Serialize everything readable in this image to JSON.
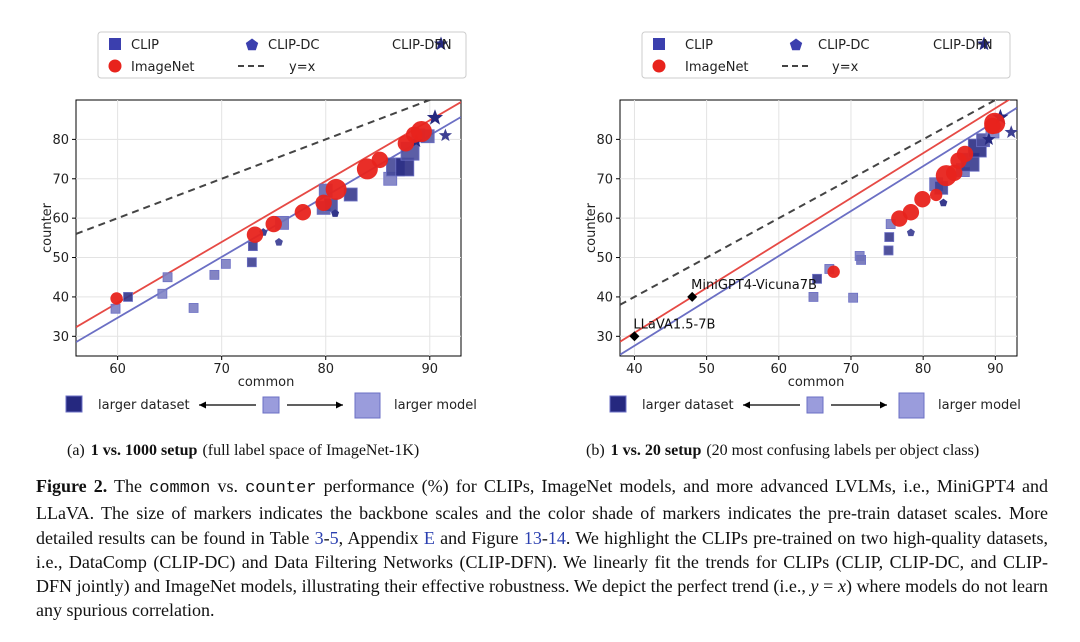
{
  "legend": {
    "clip": "CLIP",
    "clip_dc": "CLIP-DC",
    "clip_dfn": "CLIP-DFN",
    "imagenet": "ImageNet",
    "yx": "y=x"
  },
  "scale_legend": {
    "dataset": "larger dataset",
    "model": "larger model"
  },
  "colors": {
    "clip_fill": "#3b3fae",
    "clip_dark": "#25287f",
    "imagenet": "#e8231c",
    "fit_clip": "#6b6fc4",
    "fit_imagenet": "#e64a45",
    "yx": "#444444",
    "lvlm": "#000000"
  },
  "panels": [
    {
      "label": "(a)",
      "bold": "1 vs. 1000 setup",
      "rest": "(full label space of ImageNet-1K)"
    },
    {
      "label": "(b)",
      "bold": "1 vs. 20 setup",
      "rest": "(20 most confusing labels per object class)"
    }
  ],
  "chart_data": [
    {
      "type": "scatter",
      "title": "1 vs. 1000 setup",
      "xlabel": "common",
      "ylabel": "counter",
      "xlim": [
        56,
        93
      ],
      "ylim": [
        25,
        90
      ],
      "xticks": [
        60,
        70,
        80,
        90
      ],
      "yticks": [
        30,
        40,
        50,
        60,
        70,
        80
      ],
      "grid": true,
      "fit_lines": {
        "clip": {
          "slope": 1.545,
          "intercept": -58.0
        },
        "imagenet": {
          "slope": 1.545,
          "intercept": -54.2
        },
        "yx": {
          "slope": 1.0,
          "intercept": 0.0
        }
      },
      "series": [
        {
          "name": "CLIP",
          "marker": "square",
          "points": [
            [
              59.8,
              37,
              1,
              0.3
            ],
            [
              61.0,
              40,
              1,
              0.9
            ],
            [
              64.3,
              40.8,
              1,
              0.25
            ],
            [
              64.8,
              45,
              1,
              0.3
            ],
            [
              67.3,
              37.2,
              1,
              0.3
            ],
            [
              69.3,
              45.6,
              1,
              0.35
            ],
            [
              70.4,
              48.4,
              1,
              0.3
            ],
            [
              72.9,
              48.8,
              1,
              0.8
            ],
            [
              73.0,
              52.9,
              1,
              0.85
            ],
            [
              75.8,
              58.8,
              2,
              0.4
            ],
            [
              79.8,
              62.6,
              2,
              0.6
            ],
            [
              80.0,
              67.0,
              2,
              0.5
            ],
            [
              80.5,
              63.3,
              2,
              0.75
            ],
            [
              82.4,
              66.0,
              2,
              0.85
            ],
            [
              86.2,
              70.0,
              2,
              0.3
            ],
            [
              86.7,
              73.0,
              3,
              0.75
            ],
            [
              87.6,
              73.0,
              3,
              0.95
            ],
            [
              88.1,
              77.0,
              3,
              0.7
            ],
            [
              88.9,
              81.0,
              2,
              0.5
            ],
            [
              89.8,
              80.8,
              2,
              0.6
            ]
          ]
        },
        {
          "name": "CLIP-DC",
          "marker": "pentagon",
          "points": [
            [
              74.0,
              56.4,
              1,
              0.8
            ],
            [
              75.5,
              53.9,
              1,
              0.7
            ],
            [
              80.9,
              61.2,
              1,
              0.9
            ]
          ]
        },
        {
          "name": "CLIP-DFN",
          "marker": "star",
          "points": [
            [
              88.7,
              79.5,
              1,
              1.0
            ],
            [
              90.5,
              85.5,
              2,
              1.0
            ],
            [
              91.5,
              81.0,
              1,
              0.8
            ]
          ]
        },
        {
          "name": "ImageNet",
          "marker": "circle",
          "points": [
            [
              59.9,
              39.6,
              1
            ],
            [
              73.2,
              55.8,
              2
            ],
            [
              75.0,
              58.5,
              2
            ],
            [
              77.8,
              61.5,
              2
            ],
            [
              79.8,
              63.9,
              2
            ],
            [
              81.0,
              67.3,
              3
            ],
            [
              84.0,
              72.5,
              3
            ],
            [
              85.2,
              74.8,
              2
            ],
            [
              87.7,
              79.0,
              2
            ],
            [
              88.5,
              81.2,
              2
            ],
            [
              89.2,
              82.0,
              3
            ]
          ]
        },
        {
          "name": "LVLM",
          "marker": "diamond",
          "points": []
        }
      ],
      "annotations": []
    },
    {
      "type": "scatter",
      "title": "1 vs. 20 setup",
      "xlabel": "common",
      "ylabel": "counter",
      "xlim": [
        38,
        93
      ],
      "ylim": [
        25,
        90
      ],
      "xticks": [
        40,
        50,
        60,
        70,
        80,
        90
      ],
      "yticks": [
        30,
        40,
        50,
        60,
        70,
        80
      ],
      "grid": true,
      "fit_lines": {
        "clip": {
          "slope": 1.14,
          "intercept": -18.0
        },
        "imagenet": {
          "slope": 1.14,
          "intercept": -14.7
        },
        "yx": {
          "slope": 1.0,
          "intercept": 0.0
        }
      },
      "series": [
        {
          "name": "CLIP",
          "marker": "square",
          "points": [
            [
              64.8,
              40.0,
              1,
              0.35
            ],
            [
              65.3,
              44.6,
              1,
              0.9
            ],
            [
              67.0,
              47.1,
              1,
              0.3
            ],
            [
              70.3,
              39.8,
              1,
              0.3
            ],
            [
              71.2,
              50.4,
              1,
              0.3
            ],
            [
              71.4,
              49.4,
              1,
              0.4
            ],
            [
              75.2,
              51.8,
              1,
              0.8
            ],
            [
              75.3,
              55.2,
              1,
              0.85
            ],
            [
              75.5,
              58.5,
              1,
              0.3
            ],
            [
              81.8,
              68.6,
              2,
              0.5
            ],
            [
              82.5,
              67.7,
              2,
              0.8
            ],
            [
              85.5,
              72.2,
              2,
              0.4
            ],
            [
              86.5,
              74.2,
              3,
              0.85
            ],
            [
              87.5,
              77.8,
              3,
              0.95
            ],
            [
              88.3,
              79.8,
              2,
              0.7
            ],
            [
              89.6,
              82.0,
              2,
              0.3
            ]
          ]
        },
        {
          "name": "CLIP-DC",
          "marker": "pentagon",
          "points": [
            [
              78.3,
              56.3,
              1,
              0.7
            ],
            [
              82.8,
              63.9,
              1,
              0.85
            ],
            [
              86.1,
              73.8,
              1,
              0.7
            ]
          ]
        },
        {
          "name": "CLIP-DFN",
          "marker": "star",
          "points": [
            [
              89.1,
              80.0,
              1,
              1.0
            ],
            [
              90.7,
              85.6,
              2,
              1.0
            ],
            [
              92.2,
              81.8,
              1,
              0.8
            ]
          ]
        },
        {
          "name": "ImageNet",
          "marker": "circle",
          "points": [
            [
              67.6,
              46.4,
              1
            ],
            [
              76.7,
              59.9,
              2
            ],
            [
              78.3,
              61.5,
              2
            ],
            [
              79.9,
              64.8,
              2
            ],
            [
              81.8,
              65.9,
              1
            ],
            [
              83.2,
              70.8,
              3
            ],
            [
              84.3,
              71.5,
              2
            ],
            [
              84.9,
              74.6,
              2
            ],
            [
              85.8,
              76.3,
              2
            ],
            [
              89.6,
              83.4,
              2
            ],
            [
              89.9,
              84.1,
              3
            ]
          ]
        },
        {
          "name": "LVLM",
          "marker": "diamond",
          "points": [
            [
              40.0,
              30.0
            ],
            [
              48.0,
              40.0
            ]
          ]
        }
      ],
      "annotations": [
        {
          "text": "LLaVA1.5-7B",
          "x": 40.0,
          "y": 30.0
        },
        {
          "text": "MiniGPT4-Vicuna7B",
          "x": 48.0,
          "y": 40.0
        }
      ]
    }
  ]
}
